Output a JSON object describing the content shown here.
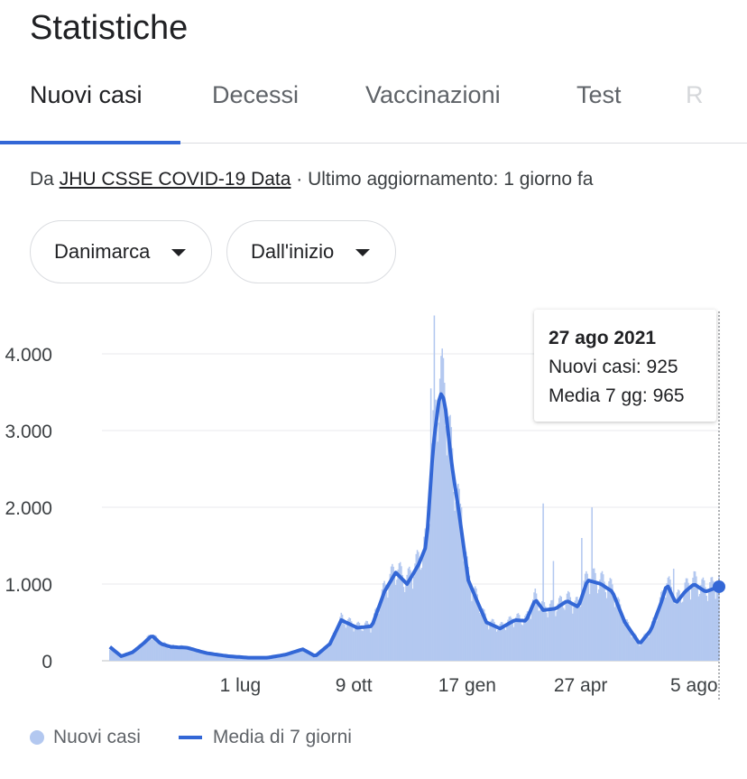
{
  "header": {
    "title": "Statistiche"
  },
  "tabs": [
    {
      "label": "Nuovi casi"
    },
    {
      "label": "Decessi"
    },
    {
      "label": "Vaccinazioni"
    },
    {
      "label": "Test"
    },
    {
      "label": "R"
    }
  ],
  "source": {
    "prefix": "Da ",
    "link": "JHU CSSE COVID-19 Data",
    "suffix": " · Ultimo aggiornamento: 1 giorno fa"
  },
  "filters": {
    "country": "Danimarca",
    "range": "Dall'inizio"
  },
  "tooltip": {
    "date": "27 ago 2021",
    "cases": "Nuovi casi: 925",
    "avg": "Media 7 gg: 965"
  },
  "legend": {
    "cases": "Nuovi casi",
    "avg": "Media di 7 giorni"
  },
  "colors": {
    "bars": "#b3c8f0",
    "line": "#3367d6",
    "accent": "#3367d6"
  },
  "chart_data": {
    "type": "bar",
    "y_ticks": [
      {
        "value": 0,
        "label": "0"
      },
      {
        "value": 1000,
        "label": "1.000"
      },
      {
        "value": 2000,
        "label": "2.000"
      },
      {
        "value": 3000,
        "label": "3.000"
      },
      {
        "value": 4000,
        "label": "4.000"
      }
    ],
    "x_ticks": [
      {
        "date": "2020-07-01",
        "label": "1 lug"
      },
      {
        "date": "2020-10-09",
        "label": "9 ott"
      },
      {
        "date": "2021-01-17",
        "label": "17 gen"
      },
      {
        "date": "2021-04-27",
        "label": "27 apr"
      },
      {
        "date": "2021-08-05",
        "label": "5 ago"
      }
    ],
    "x_range": [
      "2020-03-01",
      "2021-08-27"
    ],
    "ylim": [
      0,
      4500
    ],
    "series": [
      {
        "name": "Nuovi casi",
        "type": "bar"
      },
      {
        "name": "Media di 7 giorni",
        "type": "line"
      }
    ],
    "avg_points": [
      [
        "2020-03-08",
        180
      ],
      [
        "2020-03-18",
        60
      ],
      [
        "2020-03-28",
        110
      ],
      [
        "2020-04-07",
        230
      ],
      [
        "2020-04-14",
        330
      ],
      [
        "2020-04-22",
        220
      ],
      [
        "2020-05-01",
        180
      ],
      [
        "2020-05-15",
        170
      ],
      [
        "2020-06-01",
        100
      ],
      [
        "2020-06-20",
        60
      ],
      [
        "2020-07-08",
        40
      ],
      [
        "2020-07-25",
        40
      ],
      [
        "2020-08-10",
        80
      ],
      [
        "2020-08-25",
        150
      ],
      [
        "2020-09-05",
        60
      ],
      [
        "2020-09-18",
        220
      ],
      [
        "2020-09-28",
        530
      ],
      [
        "2020-10-12",
        430
      ],
      [
        "2020-10-25",
        450
      ],
      [
        "2020-11-05",
        900
      ],
      [
        "2020-11-15",
        1150
      ],
      [
        "2020-11-25",
        1000
      ],
      [
        "2020-12-05",
        1250
      ],
      [
        "2020-12-12",
        1500
      ],
      [
        "2020-12-18",
        2800
      ],
      [
        "2020-12-24",
        3500
      ],
      [
        "2020-12-28",
        3400
      ],
      [
        "2021-01-03",
        2600
      ],
      [
        "2021-01-10",
        1900
      ],
      [
        "2021-01-18",
        1050
      ],
      [
        "2021-01-25",
        800
      ],
      [
        "2021-02-03",
        500
      ],
      [
        "2021-02-15",
        420
      ],
      [
        "2021-02-28",
        530
      ],
      [
        "2021-03-10",
        520
      ],
      [
        "2021-03-18",
        800
      ],
      [
        "2021-03-25",
        660
      ],
      [
        "2021-04-05",
        680
      ],
      [
        "2021-04-15",
        780
      ],
      [
        "2021-04-25",
        700
      ],
      [
        "2021-05-03",
        1050
      ],
      [
        "2021-05-15",
        1000
      ],
      [
        "2021-05-25",
        900
      ],
      [
        "2021-06-05",
        500
      ],
      [
        "2021-06-18",
        220
      ],
      [
        "2021-06-28",
        400
      ],
      [
        "2021-07-08",
        800
      ],
      [
        "2021-07-12",
        1000
      ],
      [
        "2021-07-20",
        750
      ],
      [
        "2021-07-28",
        900
      ],
      [
        "2021-08-05",
        1000
      ],
      [
        "2021-08-15",
        900
      ],
      [
        "2021-08-27",
        965
      ]
    ],
    "case_peaks": [
      [
        "2020-12-19",
        4500
      ],
      [
        "2020-12-16",
        3550
      ],
      [
        "2021-01-05",
        2200
      ],
      [
        "2021-01-12",
        2000
      ],
      [
        "2021-03-25",
        2050
      ],
      [
        "2021-05-07",
        2000
      ],
      [
        "2021-04-28",
        1600
      ],
      [
        "2021-04-03",
        1300
      ],
      [
        "2021-07-18",
        1200
      ]
    ],
    "highlight": {
      "date": "2021-08-27",
      "cases": 925,
      "avg": 965
    }
  }
}
